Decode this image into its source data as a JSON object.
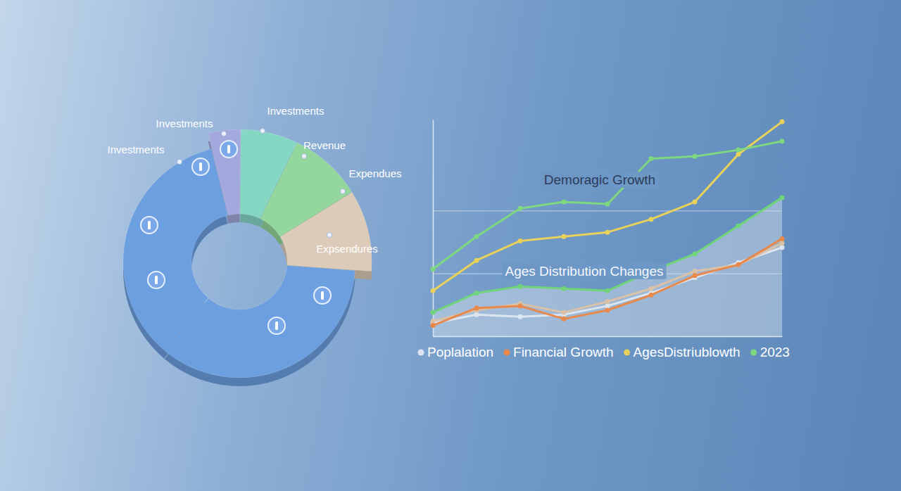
{
  "chart_data": [
    {
      "type": "donut",
      "categories": [
        "Investments",
        "Investments",
        "Revenue",
        "Expendues",
        "Expsendures",
        "Investments"
      ],
      "values": [
        4,
        7,
        9,
        10,
        35,
        35
      ],
      "colors": [
        "#a3a9dc",
        "#86d6c4",
        "#93d79c",
        "#dccbb8",
        "#6c9fe0",
        "#6c9fe0"
      ]
    },
    {
      "type": "line",
      "x": [
        0,
        1,
        2,
        3,
        4,
        5,
        6,
        7,
        8
      ],
      "xlim": [
        0,
        8
      ],
      "ylim": [
        0,
        100
      ],
      "yticks": [
        29,
        58
      ],
      "grid": true,
      "tick_labels": false,
      "legend": "bottom",
      "annotations": [
        "Demoragic Growth",
        "Ages Distribution Changes"
      ],
      "series": [
        {
          "color": "#6fd47a",
          "type": "area",
          "marker": "circle",
          "values": [
            11,
            20,
            23,
            22,
            21,
            30,
            38,
            51,
            64
          ]
        },
        {
          "name": "Poplalation",
          "color": "#dde6f0",
          "marker": "circle",
          "values": [
            6,
            10,
            9,
            10,
            14,
            20,
            27,
            34,
            41
          ]
        },
        {
          "color": "#d9c2a8",
          "marker": "circle",
          "values": [
            7,
            12,
            15,
            11,
            16,
            22,
            30,
            33,
            43
          ]
        },
        {
          "name": "Financial Growth",
          "color": "#e8884a",
          "marker": "circle",
          "values": [
            5,
            13,
            14,
            8,
            12,
            19,
            28,
            33,
            45
          ]
        },
        {
          "name": "AgesDistriublowth",
          "color": "#e8d25a",
          "marker": "circle",
          "values": [
            21,
            35,
            44,
            46,
            48,
            54,
            62,
            84,
            99
          ]
        },
        {
          "name": "2023",
          "color": "#7dd87f",
          "marker": "circle",
          "values": [
            31,
            46,
            59,
            62,
            61,
            82,
            83,
            86,
            90
          ]
        }
      ]
    }
  ]
}
